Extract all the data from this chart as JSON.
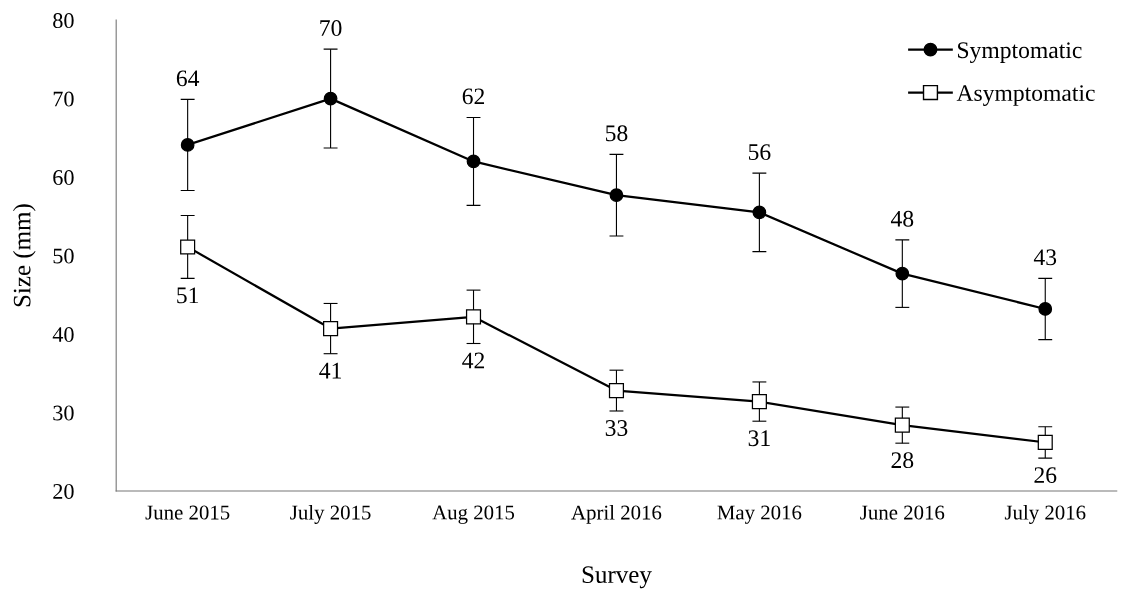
{
  "chart_data": {
    "type": "line",
    "xlabel": "Survey",
    "ylabel": "Size (mm)",
    "categories": [
      "June 2015",
      "July 2015",
      "Aug 2015",
      "April 2016",
      "May 2016",
      "June 2016",
      "July 2016"
    ],
    "ylim": [
      20,
      80
    ],
    "yticks": [
      20,
      30,
      40,
      50,
      60,
      70,
      80
    ],
    "grid": false,
    "legend": "top right",
    "series": [
      {
        "name": "Symptomatic",
        "color": "#000000",
        "marker": "circle",
        "values": [
          64.1,
          70.0,
          62.0,
          57.7,
          55.5,
          47.7,
          43.2
        ],
        "errors": [
          5.8,
          6.3,
          5.6,
          5.2,
          5.0,
          4.3,
          3.9
        ],
        "value_labels": [
          "64",
          "70",
          "62",
          "58",
          "56",
          "48",
          "43"
        ]
      },
      {
        "name": "Asymptomatic",
        "color": "#000000",
        "marker": "square",
        "values": [
          51.1,
          40.7,
          42.2,
          32.8,
          31.4,
          28.4,
          26.2
        ],
        "errors": [
          4.0,
          3.2,
          3.4,
          2.6,
          2.5,
          2.3,
          2.0
        ],
        "value_labels": [
          "51",
          "41",
          "42",
          "33",
          "31",
          "28",
          "26"
        ]
      }
    ]
  }
}
